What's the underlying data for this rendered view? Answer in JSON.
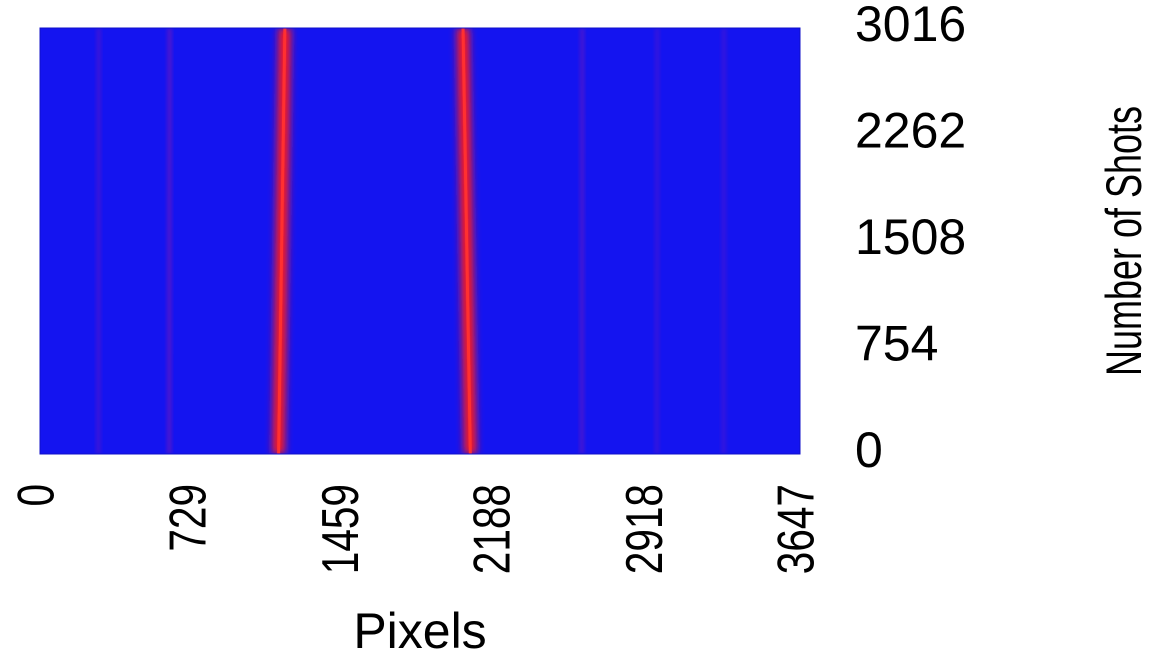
{
  "chart_data": {
    "type": "heatmap",
    "xlabel": "Pixels",
    "ylabel": "Number of Shots",
    "x_ticks": [
      "0",
      "729",
      "1459",
      "2188",
      "2918",
      "3647"
    ],
    "y_ticks": [
      "0",
      "754",
      "1508",
      "2262",
      "3016"
    ],
    "xlim": [
      0,
      3647
    ],
    "ylim": [
      0,
      3016
    ],
    "background_color": "#1414f0",
    "bands": [
      {
        "x_bottom": 280,
        "x_top": 282,
        "intensity": 0.12
      },
      {
        "x_bottom": 620,
        "x_top": 622,
        "intensity": 0.18
      },
      {
        "x_bottom": 1145,
        "x_top": 1175,
        "intensity": 1.0
      },
      {
        "x_bottom": 2065,
        "x_top": 2030,
        "intensity": 0.95
      },
      {
        "x_bottom": 2600,
        "x_top": 2602,
        "intensity": 0.15
      },
      {
        "x_bottom": 2960,
        "x_top": 2962,
        "intensity": 0.1
      },
      {
        "x_bottom": 3280,
        "x_top": 3282,
        "intensity": 0.1
      }
    ]
  }
}
